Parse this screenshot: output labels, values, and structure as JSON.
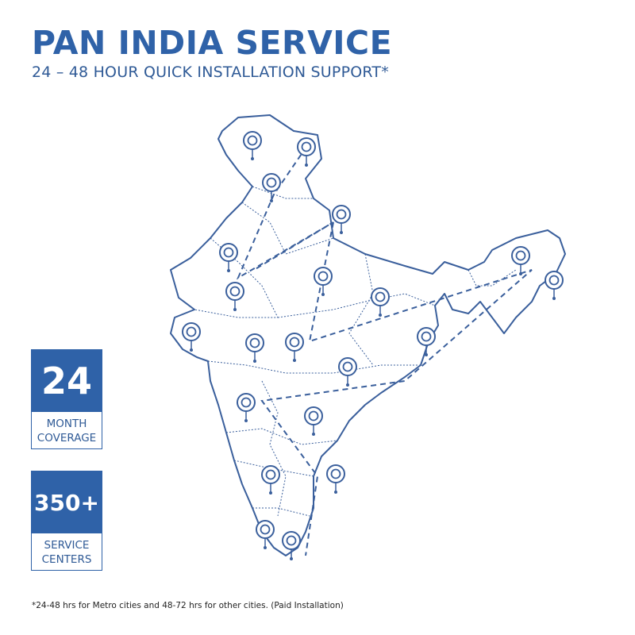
{
  "header": {
    "title": "PAN INDIA SERVICE",
    "subtitle": "24 – 48 HOUR QUICK INSTALLATION SUPPORT*"
  },
  "stats": [
    {
      "value": "24",
      "label_line1": "MONTH",
      "label_line2": "COVERAGE"
    },
    {
      "value": "350+",
      "label_line1": "SERVICE",
      "label_line2": "CENTERS"
    }
  ],
  "map": {
    "region": "India",
    "icon": "location-pin-icon",
    "route_style": "dashed"
  },
  "footnote": "*24-48 hrs for Metro cities and 48-72 hrs for other cities. (Paid Installation)",
  "colors": {
    "brand": "#2f62a8",
    "map_stroke": "#3a5f9c"
  }
}
